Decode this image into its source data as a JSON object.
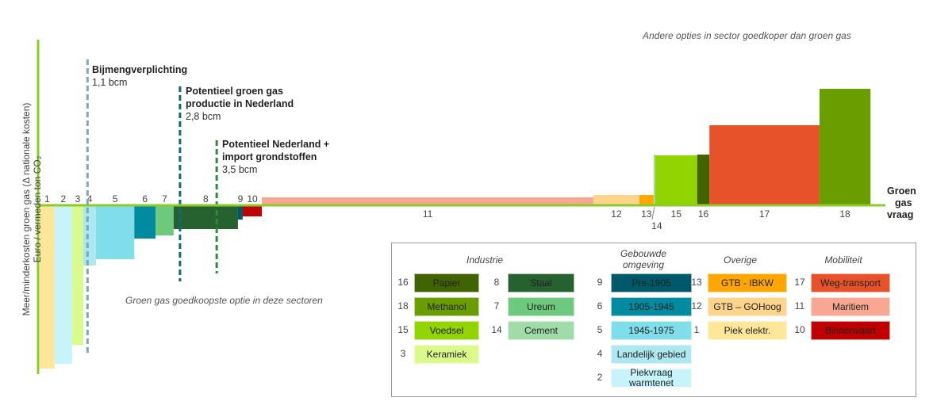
{
  "chart_data": {
    "type": "bar",
    "subtype": "marginal-cost-curve",
    "ylabel": "Meer/minderkosten groen gas (Δ nationale kosten)",
    "ylabel2": "Euro / vermeden ton CO₂",
    "xlabel": "Groen gas vraag",
    "xlabel_lines": [
      "Groen",
      "gas",
      "vraag"
    ],
    "x_units": "bcm (approx.)",
    "y_units": "relative cost (unlabelled)",
    "ylim": [
      -105,
      80
    ],
    "xlim": [
      0,
      16.5
    ],
    "bars": [
      {
        "label": "1",
        "x0": 0.03,
        "x1": 0.31,
        "value": -103,
        "color": "#FFE699"
      },
      {
        "label": "2",
        "x0": 0.31,
        "x1": 0.64,
        "value": -100,
        "color": "#C7F4FB"
      },
      {
        "label": "3",
        "x0": 0.64,
        "x1": 0.85,
        "value": -88,
        "color": "#DBFA8C"
      },
      {
        "label": "4",
        "x0": 0.85,
        "x1": 1.09,
        "value": -38,
        "color": "#ADE7EF"
      },
      {
        "label": "5",
        "x0": 1.09,
        "x1": 1.81,
        "value": -34,
        "color": "#7FDEEA"
      },
      {
        "label": "6",
        "x0": 1.81,
        "x1": 2.21,
        "value": -21,
        "color": "#008BA0"
      },
      {
        "label": "7",
        "x0": 2.21,
        "x1": 2.55,
        "value": -19,
        "color": "#6DC97C"
      },
      {
        "label": "8",
        "x0": 2.55,
        "x1": 3.76,
        "value": -15,
        "color": "#26622F"
      },
      {
        "label": "9",
        "x0": 3.76,
        "x1": 3.85,
        "value": -9,
        "color": "#00586B"
      },
      {
        "label": "10",
        "x0": 3.85,
        "x1": 4.21,
        "value": -7,
        "color": "#C00000"
      },
      {
        "label": "11",
        "x0": 4.21,
        "x1": 10.45,
        "value": 5,
        "color": "#F8A892"
      },
      {
        "label": "12",
        "x0": 10.45,
        "x1": 11.31,
        "value": 6.5,
        "color": "#FCD48C"
      },
      {
        "label": "13",
        "x0": 11.31,
        "x1": 11.58,
        "value": 6.5,
        "color": "#FFA600"
      },
      {
        "label": "14",
        "x0": 11.58,
        "x1": 11.61,
        "value": 32,
        "color": "#A0DCA8"
      },
      {
        "label": "15",
        "x0": 11.61,
        "x1": 12.4,
        "value": 31.5,
        "color": "#92D400"
      },
      {
        "label": "16",
        "x0": 12.4,
        "x1": 12.63,
        "value": 32,
        "color": "#3F6400"
      },
      {
        "label": "17",
        "x0": 12.63,
        "x1": 14.7,
        "value": 50.5,
        "color": "#E8522A"
      },
      {
        "label": "18",
        "x0": 14.7,
        "x1": 15.66,
        "value": 73.5,
        "color": "#6A9E00"
      }
    ],
    "reference_lines": [
      {
        "x": 0.93,
        "title": "Bijmengverplichting",
        "value": "1,1 bcm",
        "color": "#7FA7B5",
        "y_top": 92,
        "y_bottom": -95
      },
      {
        "x": 2.67,
        "title": "Potentieel groen gas productie in Nederland",
        "title_lines": [
          "Potentieel groen gas",
          "productie in Nederland"
        ],
        "value": "2,8 bcm",
        "color": "#0B6C80",
        "y_top": 75,
        "y_bottom": -48
      },
      {
        "x": 3.36,
        "title": "Potentieel Nederland + import grondstoffen",
        "title_lines": [
          "Potentieel Nederland +",
          "import grondstoffen"
        ],
        "value": "3,5 bcm",
        "color": "#2E8B3C",
        "y_top": 41,
        "y_bottom": -43
      }
    ],
    "annotations": {
      "top_right": "Andere opties in sector goedkoper dan groen gas",
      "bottom_left": "Groen gas goedkoopste optie in deze sectoren"
    },
    "axis_color": "#8CCB2A"
  },
  "legend": {
    "columns": [
      {
        "title": "Industrie",
        "groups": [
          [
            {
              "num": "16",
              "label": "Papier",
              "color": "#3F6400"
            },
            {
              "num": "18",
              "label": "Methanol",
              "color": "#6A9E00"
            },
            {
              "num": "15",
              "label": "Voedsel",
              "color": "#92D400"
            },
            {
              "num": "3",
              "label": "Keramiek",
              "color": "#DBFA8C"
            }
          ],
          [
            {
              "num": "8",
              "label": "Staal",
              "color": "#26622F"
            },
            {
              "num": "7",
              "label": "Ureum",
              "color": "#6DC97C"
            },
            {
              "num": "14",
              "label": "Cement",
              "color": "#A0DCA8"
            }
          ]
        ]
      },
      {
        "title": "Gebouwde omgeving",
        "title_lines": [
          "Gebouwde",
          "omgeving"
        ],
        "groups": [
          [
            {
              "num": "9",
              "label": "Pre-1905",
              "color": "#00586B"
            },
            {
              "num": "6",
              "label": "1905-1945",
              "color": "#008BA0"
            },
            {
              "num": "5",
              "label": "1945-1975",
              "color": "#7FDEEA"
            },
            {
              "num": "4",
              "label": "Landelijk gebied",
              "color": "#ADE7EF"
            },
            {
              "num": "2",
              "label": "Piekvraag warmtenet",
              "color": "#C7F4FB"
            }
          ]
        ]
      },
      {
        "title": "Overige",
        "groups": [
          [
            {
              "num": "13",
              "label": "GTB - IBKW",
              "color": "#FFA600"
            },
            {
              "num": "12",
              "label": "GTB – GOHoog",
              "color": "#FCD48C"
            },
            {
              "num": "1",
              "label": "Piek elektr.",
              "color": "#FFE699"
            }
          ]
        ]
      },
      {
        "title": "Mobiliteit",
        "groups": [
          [
            {
              "num": "17",
              "label": "Weg-transport",
              "color": "#E8522A"
            },
            {
              "num": "11",
              "label": "Maritiem",
              "color": "#F8A892"
            },
            {
              "num": "10",
              "label": "Binnenvaart",
              "color": "#C00000"
            }
          ]
        ]
      }
    ]
  }
}
